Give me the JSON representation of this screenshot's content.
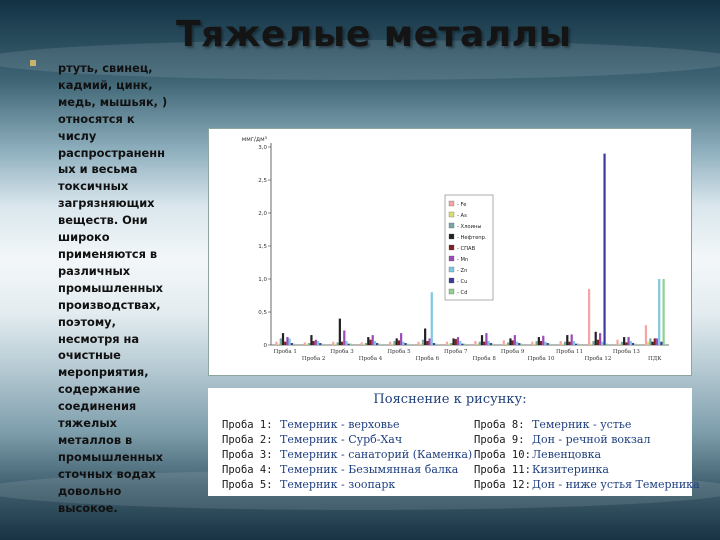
{
  "slide": {
    "title": "Тяжелые металлы",
    "body_lines": [
      "ртуть, свинец,",
      "кадмий, цинк,",
      "медь, мышьяк, )",
      "относятся к",
      "числу",
      "распространенн",
      "ых и весьма",
      "токсичных",
      "загрязняющих",
      "веществ. Они",
      "широко",
      "применяются в",
      "различных",
      "промышленных",
      "производствах,",
      "поэтому,",
      "несмотря на",
      "очистные",
      "мероприятия,",
      "содержание",
      "соединения",
      "тяжелых",
      "металлов в",
      "промышленных",
      "сточных водах",
      "довольно",
      "высокое."
    ],
    "colors": {
      "background": "#8fb0be",
      "title": "#141414"
    }
  },
  "chart_data": {
    "type": "bar",
    "ylabel": "ммг/дм³",
    "ylim": [
      0,
      3.0
    ],
    "yticks": [
      "0",
      "0,5",
      "1,0",
      "1,5",
      "2,0",
      "2,5",
      "3,0"
    ],
    "categories": [
      "Проба 1",
      "Проба 2",
      "Проба 3",
      "Проба 4",
      "Проба 5",
      "Проба 6",
      "Проба 7",
      "Проба 8",
      "Проба 9",
      "Проба 10",
      "Проба 11",
      "Проба 12",
      "Проба 13",
      "ПДК"
    ],
    "series": [
      {
        "name": "- Fe",
        "color": "#f4a6a6",
        "values": [
          0.05,
          0.04,
          0.05,
          0.04,
          0.05,
          0.05,
          0.05,
          0.06,
          0.07,
          0.05,
          0.06,
          0.85,
          0.08,
          0.3
        ]
      },
      {
        "name": "- As",
        "color": "#d6e06b",
        "values": [
          0.02,
          0.02,
          0.02,
          0.02,
          0.02,
          0.02,
          0.02,
          0.02,
          0.02,
          0.02,
          0.02,
          0.02,
          0.02,
          0.05
        ]
      },
      {
        "name": "- Хлоины",
        "color": "#77a6a3",
        "values": [
          0.1,
          0.03,
          0.04,
          0.03,
          0.06,
          0.08,
          0.03,
          0.05,
          0.04,
          0.06,
          0.05,
          0.06,
          0.05,
          0.1
        ]
      },
      {
        "name": "- Нефтепр.",
        "color": "#222222",
        "values": [
          0.18,
          0.15,
          0.4,
          0.12,
          0.1,
          0.25,
          0.1,
          0.15,
          0.1,
          0.12,
          0.15,
          0.2,
          0.12,
          0.05
        ]
      },
      {
        "name": "- СПАВ",
        "color": "#7f1f1f",
        "values": [
          0.05,
          0.06,
          0.05,
          0.08,
          0.07,
          0.06,
          0.09,
          0.05,
          0.07,
          0.06,
          0.05,
          0.08,
          0.04,
          0.1
        ]
      },
      {
        "name": "- Mn",
        "color": "#9a4bb8",
        "values": [
          0.12,
          0.08,
          0.22,
          0.15,
          0.18,
          0.1,
          0.12,
          0.18,
          0.15,
          0.14,
          0.16,
          0.18,
          0.12,
          0.1
        ]
      },
      {
        "name": "- Zn",
        "color": "#7ec8e3",
        "values": [
          0.1,
          0.06,
          0.06,
          0.06,
          0.05,
          0.8,
          0.06,
          0.06,
          0.05,
          0.05,
          0.06,
          0.05,
          0.06,
          1.0
        ]
      },
      {
        "name": "- Cu",
        "color": "#3b3ba0",
        "values": [
          0.03,
          0.03,
          0.02,
          0.03,
          0.03,
          0.03,
          0.02,
          0.03,
          0.03,
          0.03,
          0.02,
          2.9,
          0.03,
          0.05
        ]
      },
      {
        "name": "- Cd",
        "color": "#8fd18f",
        "values": [
          0.02,
          0.02,
          0.02,
          0.02,
          0.02,
          0.02,
          0.02,
          0.02,
          0.02,
          0.02,
          0.02,
          0.02,
          0.02,
          1.0
        ]
      }
    ],
    "legend": "top-right",
    "grid": false
  },
  "explanation": {
    "title": "Пояснение к рисунку:",
    "left": [
      {
        "probe": "Проба 1:",
        "desc": "Темерник - верховье"
      },
      {
        "probe": "Проба 2:",
        "desc": "Темерник - Сурб-Хач"
      },
      {
        "probe": "Проба 3:",
        "desc": "Темерник - санаторий (Каменка)"
      },
      {
        "probe": "Проба 4:",
        "desc": "Темерник - Безымянная балка"
      },
      {
        "probe": "Проба 5:",
        "desc": "Темерник - зоопарк"
      }
    ],
    "right": [
      {
        "probe": "Проба 8:",
        "desc": "Темерник - устье"
      },
      {
        "probe": "Проба 9:",
        "desc": "Дон - речной вокзал"
      },
      {
        "probe": "Проба 10:",
        "desc": "Левенцовка"
      },
      {
        "probe": "Проба 11:",
        "desc": "Кизитеринка"
      },
      {
        "probe": "Проба 12:",
        "desc": "Дон - ниже устья Темерника"
      }
    ]
  }
}
